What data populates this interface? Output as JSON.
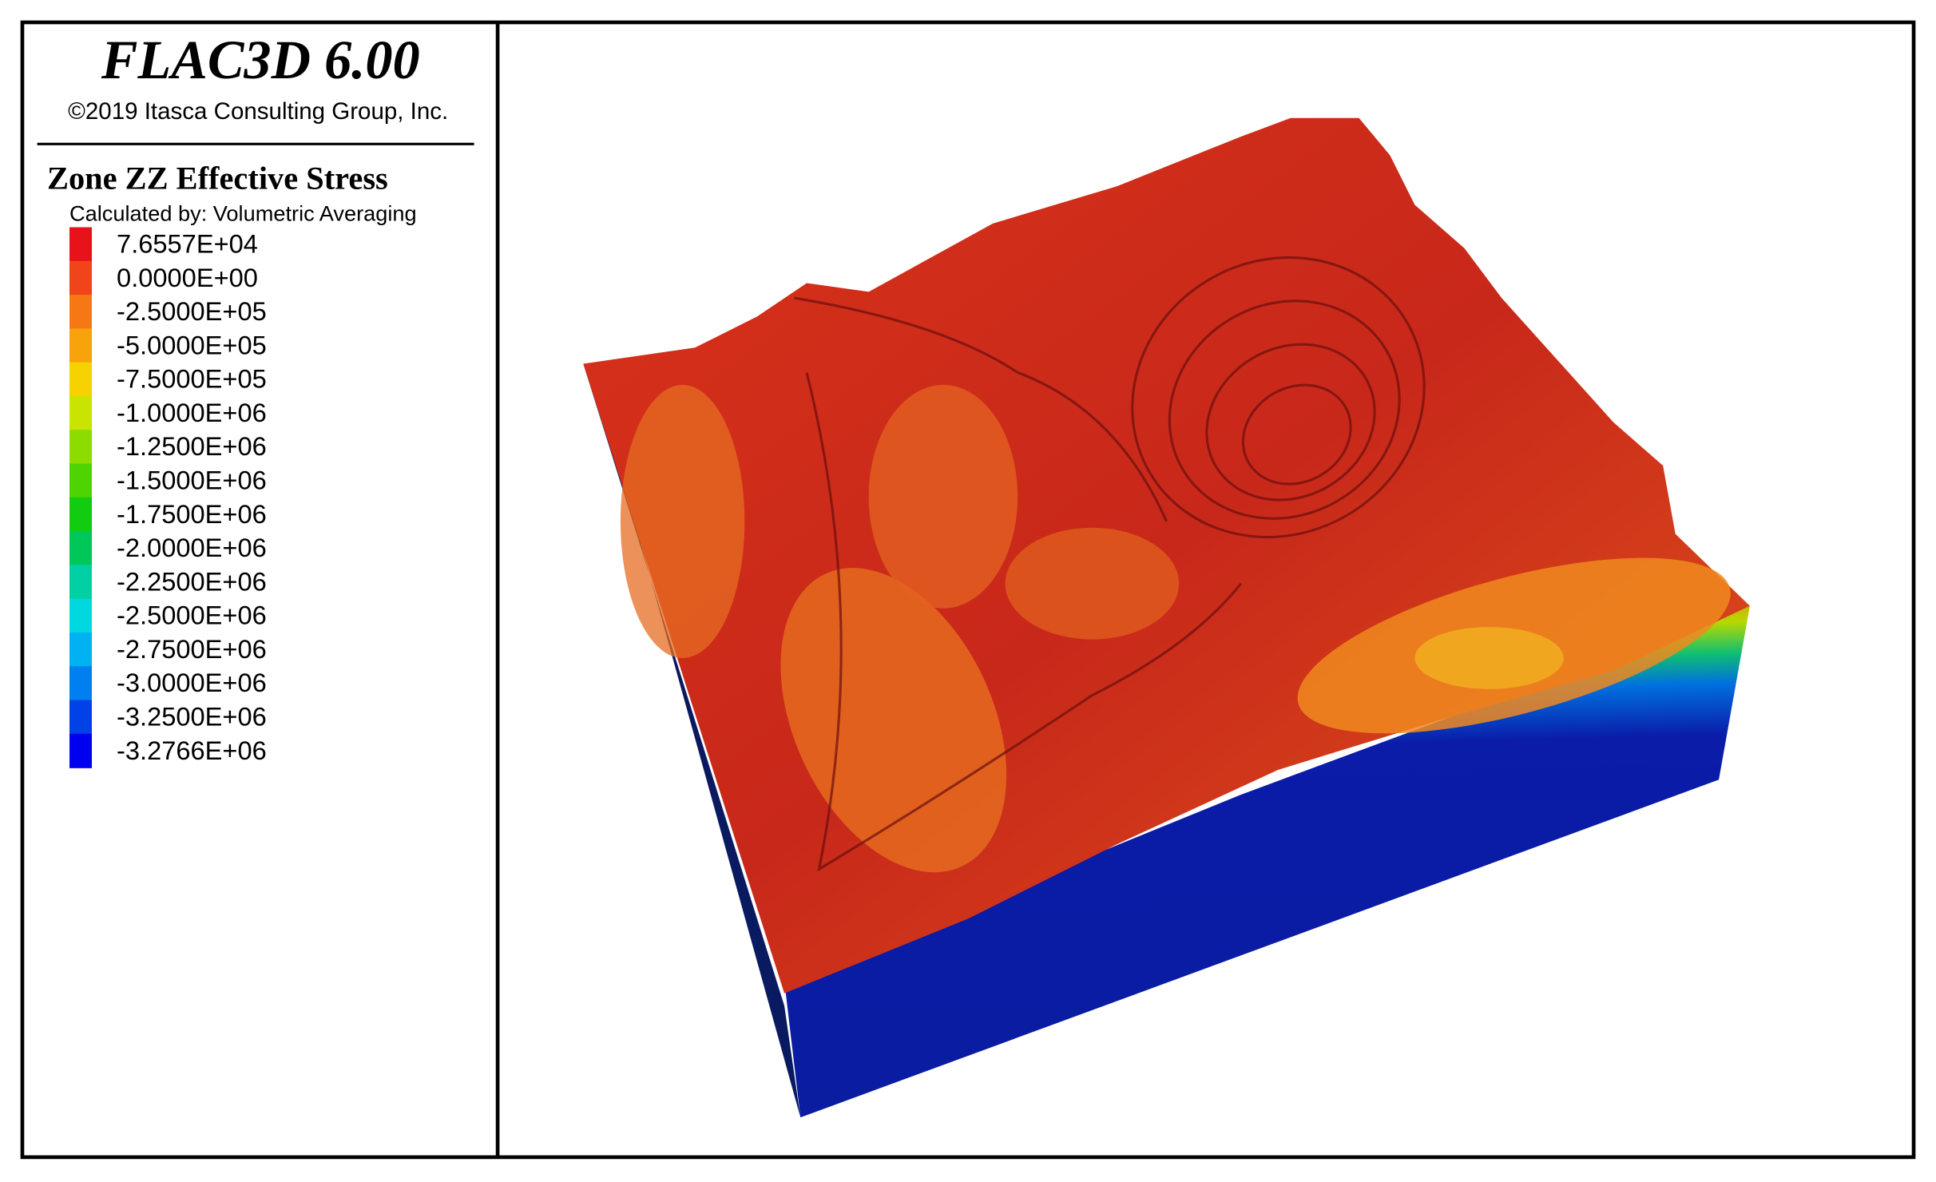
{
  "header": {
    "title": "FLAC3D 6.00",
    "copyright": "©2019 Itasca Consulting Group, Inc."
  },
  "legend": {
    "title": "Zone ZZ Effective Stress",
    "subtitle": "Calculated by: Volumetric Averaging",
    "entries": [
      {
        "label": "7.6557E+04",
        "color": "#e8121a"
      },
      {
        "label": "0.0000E+00",
        "color": "#f0441a"
      },
      {
        "label": "-2.5000E+05",
        "color": "#f57814"
      },
      {
        "label": "-5.0000E+05",
        "color": "#f8a20c"
      },
      {
        "label": "-7.5000E+05",
        "color": "#f5d200"
      },
      {
        "label": "-1.0000E+06",
        "color": "#c8e400"
      },
      {
        "label": "-1.2500E+06",
        "color": "#8cdc00"
      },
      {
        "label": "-1.5000E+06",
        "color": "#4ed400"
      },
      {
        "label": "-1.7500E+06",
        "color": "#12cc12"
      },
      {
        "label": "-2.0000E+06",
        "color": "#00c858"
      },
      {
        "label": "-2.2500E+06",
        "color": "#00d0a4"
      },
      {
        "label": "-2.5000E+06",
        "color": "#00d8e0"
      },
      {
        "label": "-2.7500E+06",
        "color": "#00b2f2"
      },
      {
        "label": "-3.0000E+06",
        "color": "#0080f0"
      },
      {
        "label": "-3.2500E+06",
        "color": "#0042e8"
      },
      {
        "label": "-3.2766E+06",
        "color": "#0000f0"
      }
    ]
  }
}
